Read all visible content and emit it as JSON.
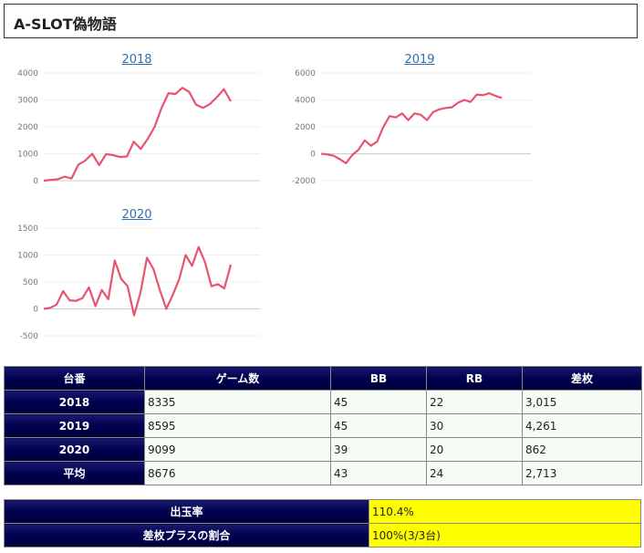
{
  "page_title": "A-SLOT偽物語",
  "line_color": "#e8546f",
  "chart_data": [
    {
      "type": "line",
      "title": "2018",
      "ylim": [
        0,
        4000
      ],
      "yticks": [
        0,
        1000,
        2000,
        3000,
        4000
      ],
      "values": [
        0,
        30,
        50,
        150,
        80,
        600,
        750,
        1000,
        580,
        990,
        950,
        880,
        900,
        1450,
        1180,
        1550,
        2000,
        2700,
        3250,
        3220,
        3450,
        3300,
        2820,
        2700,
        2850,
        3100,
        3400,
        2950
      ]
    },
    {
      "type": "line",
      "title": "2019",
      "ylim": [
        -2000,
        6000
      ],
      "yticks": [
        -2000,
        0,
        2000,
        4000,
        6000
      ],
      "values": [
        0,
        -50,
        -150,
        -400,
        -700,
        -100,
        300,
        1000,
        600,
        900,
        2000,
        2800,
        2700,
        3000,
        2500,
        3000,
        2900,
        2500,
        3100,
        3300,
        3400,
        3450,
        3800,
        4000,
        3850,
        4400,
        4350,
        4500,
        4300,
        4150
      ]
    },
    {
      "type": "line",
      "title": "2020",
      "ylim": [
        -500,
        1500
      ],
      "yticks": [
        -500,
        0,
        500,
        1000,
        1500
      ],
      "values": [
        0,
        20,
        80,
        330,
        160,
        150,
        200,
        400,
        50,
        350,
        180,
        900,
        560,
        420,
        -120,
        300,
        950,
        740,
        350,
        0,
        260,
        550,
        1000,
        800,
        1150,
        870,
        420,
        460,
        380,
        820
      ]
    }
  ],
  "stats_table": {
    "headers": [
      "台番",
      "ゲーム数",
      "BB",
      "RB",
      "差枚"
    ],
    "rows": [
      [
        "2018",
        "8335",
        "45",
        "22",
        "3,015"
      ],
      [
        "2019",
        "8595",
        "45",
        "30",
        "4,261"
      ],
      [
        "2020",
        "9099",
        "39",
        "20",
        "862"
      ],
      [
        "平均",
        "8676",
        "43",
        "24",
        "2,713"
      ]
    ]
  },
  "summary": {
    "payout_label": "出玉率",
    "payout_value": "110.4%",
    "plus_label": "差枚プラスの割合",
    "plus_value": "100%(3/3台)"
  }
}
